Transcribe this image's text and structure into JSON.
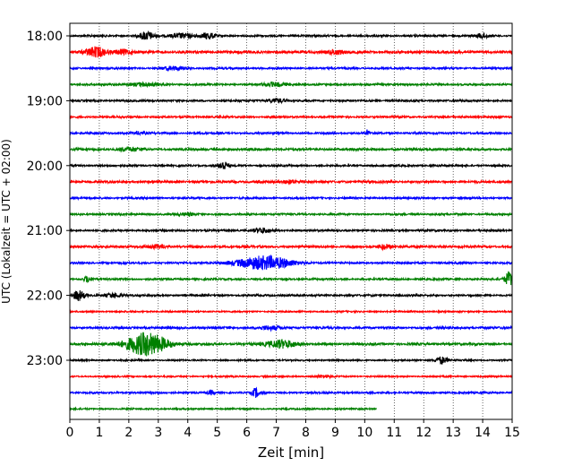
{
  "chart_data": {
    "type": "line",
    "title": "",
    "xlabel": "Zeit  [min]",
    "ylabel": "UTC (Lokalzeit = UTC + 02:00)",
    "xlim": [
      0,
      15
    ],
    "x_ticks": [
      "0",
      "1",
      "2",
      "3",
      "4",
      "5",
      "6",
      "7",
      "8",
      "9",
      "10",
      "11",
      "12",
      "13",
      "14",
      "15"
    ],
    "y_ticks": [
      {
        "label": "18:00",
        "trace": 0
      },
      {
        "label": "19:00",
        "trace": 4
      },
      {
        "label": "20:00",
        "trace": 8
      },
      {
        "label": "21:00",
        "trace": 12
      },
      {
        "label": "22:00",
        "trace": 16
      },
      {
        "label": "23:00",
        "trace": 20
      }
    ],
    "grid": "vertical dotted",
    "color_cycle": [
      "#000000",
      "#ff0000",
      "#0000ff",
      "#008000"
    ],
    "traces": [
      {
        "start": "18:00",
        "end_min": 15,
        "base": 0.1,
        "events": [
          {
            "t": 2.6,
            "amp": 0.5,
            "w": 0.25
          },
          {
            "t": 3.8,
            "amp": 0.3,
            "w": 0.4
          },
          {
            "t": 4.7,
            "amp": 0.4,
            "w": 0.2
          },
          {
            "t": 14.0,
            "amp": 0.3,
            "w": 0.2
          }
        ]
      },
      {
        "start": "18:15",
        "end_min": 15,
        "base": 0.14,
        "events": [
          {
            "t": 0.9,
            "amp": 0.6,
            "w": 0.35
          },
          {
            "t": 1.8,
            "amp": 0.25,
            "w": 0.3
          },
          {
            "t": 9.0,
            "amp": 0.25,
            "w": 0.3
          }
        ]
      },
      {
        "start": "18:30",
        "end_min": 15,
        "base": 0.1,
        "events": [
          {
            "t": 3.5,
            "amp": 0.2,
            "w": 0.4
          }
        ]
      },
      {
        "start": "18:45",
        "end_min": 15,
        "base": 0.1,
        "events": [
          {
            "t": 2.5,
            "amp": 0.2,
            "w": 0.5
          },
          {
            "t": 7.0,
            "amp": 0.2,
            "w": 0.5
          }
        ]
      },
      {
        "start": "19:00",
        "end_min": 15,
        "base": 0.1,
        "events": [
          {
            "t": 7.0,
            "amp": 0.25,
            "w": 0.3
          }
        ]
      },
      {
        "start": "19:15",
        "end_min": 15,
        "base": 0.1,
        "events": []
      },
      {
        "start": "19:30",
        "end_min": 15,
        "base": 0.1,
        "events": [
          {
            "t": 10.1,
            "amp": 0.5,
            "w": 0.04
          },
          {
            "t": 2.3,
            "amp": 0.15,
            "w": 0.3
          }
        ]
      },
      {
        "start": "19:45",
        "end_min": 15,
        "base": 0.12,
        "events": [
          {
            "t": 2.0,
            "amp": 0.2,
            "w": 0.4
          }
        ]
      },
      {
        "start": "20:00",
        "end_min": 15,
        "base": 0.1,
        "events": [
          {
            "t": 5.2,
            "amp": 0.55,
            "w": 0.15
          }
        ]
      },
      {
        "start": "20:15",
        "end_min": 15,
        "base": 0.12,
        "events": [
          {
            "t": 7.5,
            "amp": 0.2,
            "w": 0.3
          }
        ]
      },
      {
        "start": "20:30",
        "end_min": 15,
        "base": 0.1,
        "events": []
      },
      {
        "start": "20:45",
        "end_min": 15,
        "base": 0.1,
        "events": [
          {
            "t": 4.0,
            "amp": 0.15,
            "w": 0.3
          }
        ]
      },
      {
        "start": "21:00",
        "end_min": 15,
        "base": 0.1,
        "events": [
          {
            "t": 6.5,
            "amp": 0.3,
            "w": 0.3
          }
        ]
      },
      {
        "start": "21:15",
        "end_min": 15,
        "base": 0.12,
        "events": [
          {
            "t": 10.7,
            "amp": 0.3,
            "w": 0.2
          },
          {
            "t": 3.0,
            "amp": 0.2,
            "w": 0.3
          }
        ]
      },
      {
        "start": "21:30",
        "end_min": 15,
        "base": 0.1,
        "events": [
          {
            "t": 6.6,
            "amp": 0.85,
            "w": 0.9
          }
        ]
      },
      {
        "start": "21:45",
        "end_min": 15,
        "base": 0.1,
        "events": [
          {
            "t": 14.9,
            "amp": 0.9,
            "w": 0.15
          },
          {
            "t": 0.6,
            "amp": 0.35,
            "w": 0.15
          }
        ]
      },
      {
        "start": "22:00",
        "end_min": 15,
        "base": 0.1,
        "events": [
          {
            "t": 0.3,
            "amp": 0.6,
            "w": 0.2
          },
          {
            "t": 1.5,
            "amp": 0.25,
            "w": 0.3
          }
        ]
      },
      {
        "start": "22:15",
        "end_min": 15,
        "base": 0.08,
        "events": []
      },
      {
        "start": "22:30",
        "end_min": 15,
        "base": 0.12,
        "events": [
          {
            "t": 6.8,
            "amp": 0.2,
            "w": 0.4
          }
        ]
      },
      {
        "start": "22:45",
        "end_min": 15,
        "base": 0.12,
        "events": [
          {
            "t": 2.6,
            "amp": 1.4,
            "w": 0.7
          },
          {
            "t": 7.2,
            "amp": 0.5,
            "w": 0.5
          }
        ]
      },
      {
        "start": "23:00",
        "end_min": 15,
        "base": 0.08,
        "events": [
          {
            "t": 12.6,
            "amp": 0.45,
            "w": 0.2
          }
        ]
      },
      {
        "start": "23:15",
        "end_min": 15,
        "base": 0.08,
        "events": [
          {
            "t": 8.6,
            "amp": 0.15,
            "w": 0.3
          }
        ]
      },
      {
        "start": "23:30",
        "end_min": 15,
        "base": 0.1,
        "events": [
          {
            "t": 6.3,
            "amp": 0.55,
            "w": 0.12
          },
          {
            "t": 4.8,
            "amp": 0.25,
            "w": 0.1
          }
        ]
      },
      {
        "start": "23:45",
        "end_min": 10.4,
        "base": 0.08,
        "events": []
      }
    ]
  }
}
